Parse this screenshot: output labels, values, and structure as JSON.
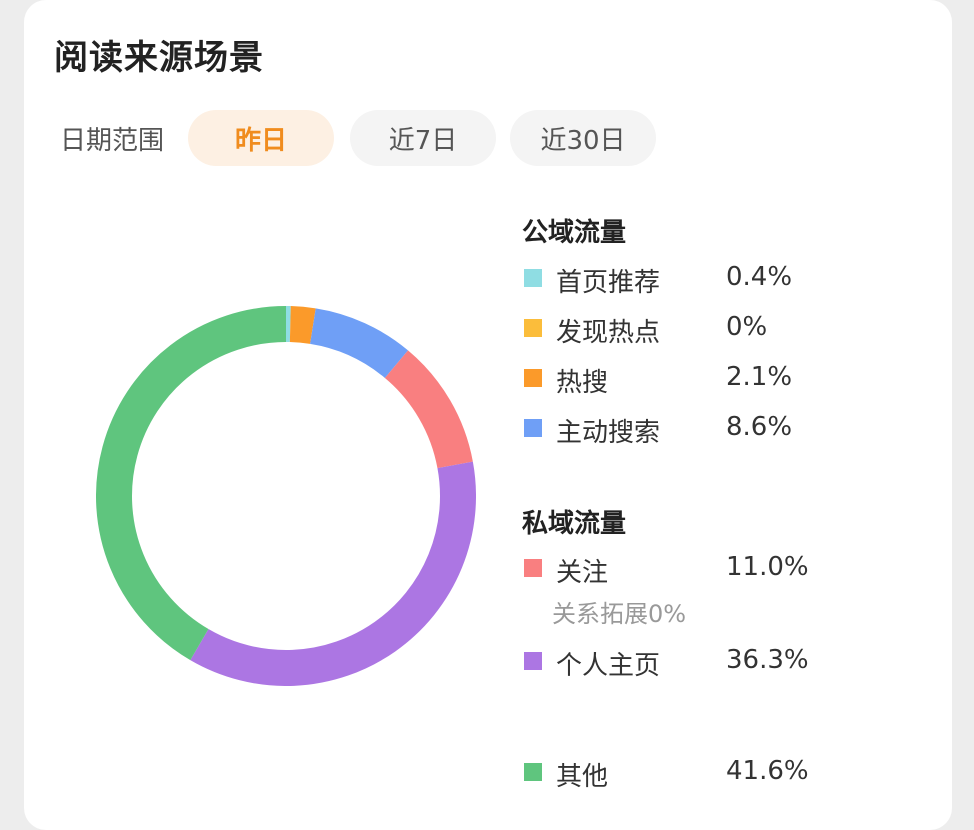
{
  "header": {
    "title": "阅读来源场景"
  },
  "filter": {
    "label": "日期范围",
    "tabs": [
      {
        "label": "昨日",
        "active": true
      },
      {
        "label": "近7日",
        "active": false
      },
      {
        "label": "近30日",
        "active": false
      }
    ]
  },
  "chart_data": {
    "type": "pie",
    "style": "donut",
    "groups": [
      {
        "title": "公域流量",
        "items": [
          {
            "label": "首页推荐",
            "value": 0.4,
            "display": "0.4%",
            "color": "#8fdde3"
          },
          {
            "label": "发现热点",
            "value": 0,
            "display": "0%",
            "color": "#fbbd3b"
          },
          {
            "label": "热搜",
            "value": 2.1,
            "display": "2.1%",
            "color": "#fb9a2a"
          },
          {
            "label": "主动搜索",
            "value": 8.6,
            "display": "8.6%",
            "color": "#6f9ff6"
          }
        ]
      },
      {
        "title": "私域流量",
        "items": [
          {
            "label": "关注",
            "value": 11.0,
            "display": "11.0%",
            "color": "#f97f80",
            "sub": "关系拓展0%"
          },
          {
            "label": "个人主页",
            "value": 36.3,
            "display": "36.3%",
            "color": "#ac76e3"
          }
        ]
      },
      {
        "title": "",
        "items": [
          {
            "label": "其他",
            "value": 41.6,
            "display": "41.6%",
            "color": "#5fc57e"
          }
        ]
      }
    ]
  }
}
